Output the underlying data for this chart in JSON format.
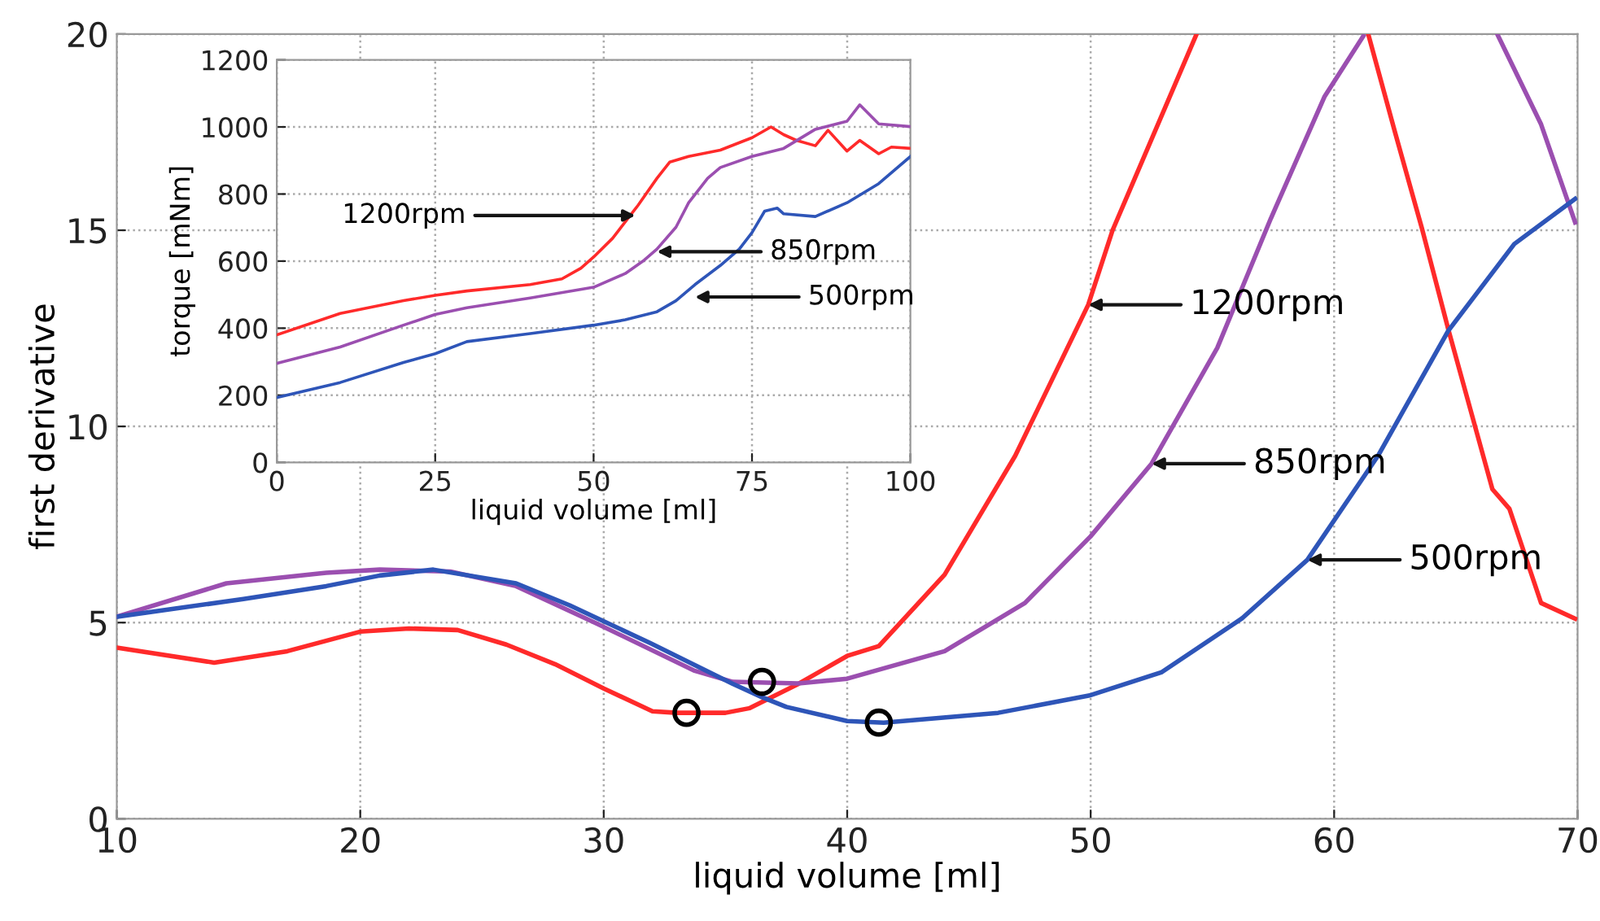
{
  "chart_data": [
    {
      "type": "line",
      "xlabel": "liquid volume [ml]",
      "ylabel": "first derivative",
      "xlim": [
        10,
        70
      ],
      "ylim": [
        0,
        20
      ],
      "xticks": [
        10,
        20,
        30,
        40,
        50,
        60,
        70
      ],
      "yticks": [
        0,
        5,
        10,
        15,
        20
      ],
      "grid": true,
      "line_style": "solid",
      "series": [
        {
          "color": "#ff2a2a",
          "x": [
            10,
            14,
            17,
            20,
            22,
            24,
            26,
            28,
            30,
            32,
            33,
            35,
            36,
            38,
            40,
            41.3,
            44,
            46.9,
            49.9,
            50.9,
            54.35,
            55,
            61,
            61.4,
            62.5,
            63.6,
            64.7,
            66.5,
            67.2,
            68.5,
            69.9
          ],
          "values": [
            4.36,
            3.98,
            4.27,
            4.77,
            4.85,
            4.81,
            4.44,
            3.94,
            3.32,
            2.74,
            2.7,
            2.7,
            2.82,
            3.44,
            4.15,
            4.4,
            6.22,
            9.25,
            13.1,
            15,
            20,
            null,
            null,
            20,
            17.5,
            15.06,
            12.45,
            8.4,
            7.9,
            5.5,
            5.1
          ]
        },
        {
          "color": "#9b4fb0",
          "x": [
            10,
            14.5,
            18.6,
            20.8,
            23.7,
            26.4,
            29.7,
            33.7,
            35.3,
            38,
            40,
            44,
            47.3,
            50,
            52.5,
            55.2,
            57.4,
            59.6,
            61.2,
            62,
            66,
            66.7,
            68.5,
            69.9
          ],
          "values": [
            5.15,
            6.0,
            6.27,
            6.35,
            6.3,
            5.93,
            4.98,
            3.78,
            3.49,
            3.45,
            3.57,
            4.27,
            5.5,
            7.2,
            9.05,
            12.0,
            15.3,
            18.4,
            19.95,
            null,
            null,
            20,
            17.7,
            15.2
          ]
        },
        {
          "color": "#2e55b8",
          "x": [
            10,
            15.2,
            18.6,
            20.8,
            23,
            26.4,
            28.6,
            31.9,
            35.3,
            36.5,
            37.5,
            40,
            41.5,
            46.2,
            50,
            52.9,
            56.2,
            58.9,
            61.8,
            64.7,
            67.4,
            69.9
          ],
          "values": [
            5.15,
            5.6,
            5.93,
            6.2,
            6.35,
            6.0,
            5.44,
            4.48,
            3.44,
            3.1,
            2.85,
            2.49,
            2.45,
            2.7,
            3.15,
            3.73,
            5.1,
            6.6,
            9.25,
            12.45,
            14.65,
            15.8
          ]
        },
        {
          "type": "scatter",
          "color": "#000000",
          "marker": "circle",
          "x": [
            33.4,
            36.5,
            41.3
          ],
          "values": [
            2.7,
            3.49,
            2.45
          ]
        }
      ],
      "annotations": [
        {
          "text": "1200rpm",
          "x": 49.9,
          "y": 13.1
        },
        {
          "text": "850rpm",
          "x": 52.5,
          "y": 9.05
        },
        {
          "text": "500rpm",
          "x": 58.9,
          "y": 6.6
        }
      ]
    },
    {
      "type": "line",
      "xlabel": "liquid volume [ml]",
      "ylabel": "torque [mNm]",
      "xlim": [
        0,
        100
      ],
      "ylim": [
        0,
        1200
      ],
      "xticks": [
        0,
        25,
        50,
        75,
        100
      ],
      "yticks": [
        0,
        200,
        400,
        600,
        800,
        1000,
        1200
      ],
      "grid": true,
      "line_style": "solid",
      "series": [
        {
          "color": "#ff2a2a",
          "x": [
            0,
            10,
            20,
            25,
            30,
            40,
            45,
            48,
            50,
            53,
            55,
            57,
            60,
            62,
            65,
            70,
            75,
            78,
            80,
            82,
            85,
            87,
            90,
            92,
            95,
            97,
            100
          ],
          "values": [
            380,
            444,
            482,
            498,
            511,
            530,
            547,
            579,
            612,
            668,
            717,
            766,
            847,
            895,
            912,
            931,
            968,
            1000,
            977,
            960,
            944,
            990,
            928,
            960,
            920,
            940,
            936
          ]
        },
        {
          "color": "#9b4fb0",
          "x": [
            0,
            10,
            20,
            25,
            30,
            40,
            50,
            55,
            58,
            60,
            63,
            65,
            68,
            70,
            75,
            80,
            85,
            90,
            92,
            95,
            100
          ],
          "values": [
            295,
            344,
            409,
            441,
            461,
            490,
            522,
            563,
            603,
            636,
            701,
            774,
            847,
            879,
            912,
            936,
            993,
            1017,
            1066,
            1009,
            1001
          ]
        },
        {
          "color": "#2e55b8",
          "x": [
            0,
            10,
            20,
            25,
            30,
            40,
            50,
            55,
            60,
            63,
            66,
            70,
            73,
            75,
            77,
            79,
            80,
            85,
            90,
            95,
            100
          ],
          "values": [
            193,
            238,
            298,
            324,
            360,
            384,
            409,
            425,
            449,
            482,
            530,
            587,
            636,
            685,
            749,
            758,
            741,
            733,
            774,
            831,
            912
          ]
        }
      ],
      "annotations": [
        {
          "text": "1200rpm",
          "x": 56.6,
          "y": 736
        },
        {
          "text": "850rpm",
          "x": 60,
          "y": 628
        },
        {
          "text": "500rpm",
          "x": 66,
          "y": 493
        }
      ]
    }
  ]
}
